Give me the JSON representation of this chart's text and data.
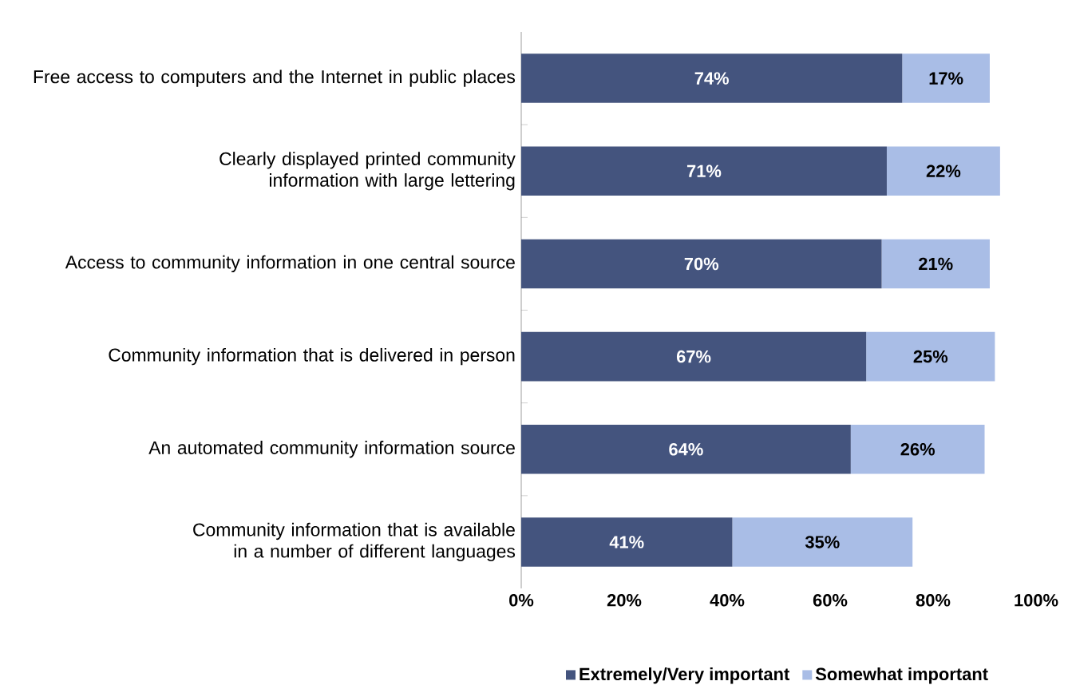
{
  "chart_data": {
    "type": "bar",
    "orientation": "horizontal",
    "stacked": true,
    "categories": [
      "Free access to computers and the Internet in public places",
      "Clearly displayed printed community information with large lettering",
      "Access to community information in one central source",
      "Community information that is delivered in person",
      "An automated community information source",
      "Community information that is available in a number of different languages"
    ],
    "series": [
      {
        "name": "Extremely/Very important",
        "color": "#44547e",
        "values": [
          74,
          71,
          70,
          67,
          64,
          41
        ],
        "value_labels": [
          "74%",
          "71%",
          "70%",
          "67%",
          "64%",
          "41%"
        ]
      },
      {
        "name": "Somewhat important",
        "color": "#a9bde6",
        "values": [
          17,
          22,
          21,
          25,
          26,
          35
        ],
        "value_labels": [
          "17%",
          "22%",
          "21%",
          "25%",
          "26%",
          "35%"
        ]
      }
    ],
    "xlim": [
      0,
      100
    ],
    "xticks": [
      {
        "value": 0,
        "label": "0%"
      },
      {
        "value": 20,
        "label": "20%"
      },
      {
        "value": 40,
        "label": "40%"
      },
      {
        "value": 60,
        "label": "60%"
      },
      {
        "value": 80,
        "label": "80%"
      },
      {
        "value": 100,
        "label": "100%"
      }
    ],
    "grid": false,
    "legend": "bottom"
  }
}
